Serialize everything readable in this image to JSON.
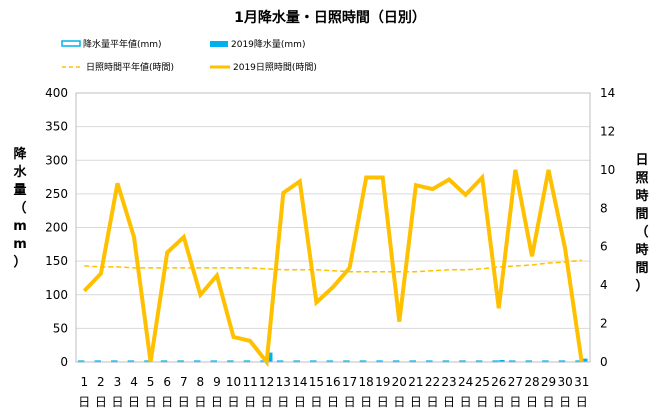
{
  "chart_data": {
    "type": "bar-line-combo",
    "title": "1月降水量・日照時間（日別）",
    "legend": [
      {
        "label": "降水量平年値(mm)",
        "kind": "bar-outline",
        "color": "#00b0f0"
      },
      {
        "label": "2019降水量(mm)",
        "kind": "bar",
        "color": "#00b0f0"
      },
      {
        "label": "日照時間平年値(時間)",
        "kind": "dashed-line",
        "color": "#ffc000"
      },
      {
        "label": "2019日照時間(時間)",
        "kind": "line",
        "color": "#ffc000"
      }
    ],
    "legend_position": "top",
    "categories": [
      "1",
      "2",
      "3",
      "4",
      "5",
      "6",
      "7",
      "8",
      "9",
      "10",
      "11",
      "12",
      "13",
      "14",
      "15",
      "16",
      "17",
      "18",
      "19",
      "20",
      "21",
      "22",
      "23",
      "24",
      "25",
      "26",
      "27",
      "28",
      "29",
      "30",
      "31"
    ],
    "category_suffix": "日",
    "left_axis": {
      "label": "降水量（mm）",
      "min": 0,
      "max": 400,
      "ticks": [
        0,
        50,
        100,
        150,
        200,
        250,
        300,
        350,
        400
      ]
    },
    "right_axis": {
      "label": "日照時間（時間）",
      "min": 0,
      "max": 14,
      "ticks": [
        0,
        2,
        4,
        6,
        8,
        10,
        12,
        14
      ]
    },
    "grid": true,
    "series": [
      {
        "name": "降水量平年値(mm)",
        "axis": "left",
        "type": "bar",
        "values": [
          1.5,
          1.5,
          1.5,
          1.5,
          1.5,
          1.5,
          1.5,
          1.5,
          1.5,
          1.5,
          1.5,
          1.5,
          1.5,
          1.5,
          1.5,
          1.5,
          1.5,
          1.5,
          1.5,
          1.5,
          1.5,
          1.5,
          1.5,
          1.5,
          1.5,
          1.5,
          1.5,
          1.5,
          1.5,
          1.5,
          1.5
        ]
      },
      {
        "name": "2019降水量(mm)",
        "axis": "left",
        "type": "bar",
        "values": [
          0,
          0,
          0,
          0,
          0,
          0,
          0,
          0,
          0,
          0,
          0,
          14,
          0,
          0,
          0,
          0,
          0,
          0,
          0,
          0,
          0,
          0,
          0,
          0,
          0,
          3,
          0,
          0,
          0,
          0,
          5
        ]
      },
      {
        "name": "日照時間平年値(時間)",
        "axis": "right",
        "type": "line",
        "dash": true,
        "values": [
          5.0,
          4.95,
          4.95,
          4.9,
          4.9,
          4.9,
          4.9,
          4.9,
          4.9,
          4.9,
          4.9,
          4.85,
          4.8,
          4.8,
          4.8,
          4.75,
          4.7,
          4.7,
          4.7,
          4.7,
          4.7,
          4.75,
          4.8,
          4.8,
          4.85,
          4.95,
          5.0,
          5.05,
          5.15,
          5.2,
          5.3
        ]
      },
      {
        "name": "2019日照時間(時間)",
        "axis": "right",
        "type": "line",
        "dash": false,
        "values": [
          3.7,
          4.6,
          9.3,
          6.5,
          0.0,
          5.7,
          6.5,
          3.5,
          4.5,
          1.3,
          1.1,
          0.0,
          8.8,
          9.4,
          3.1,
          3.9,
          4.9,
          9.6,
          9.6,
          2.1,
          9.2,
          9.0,
          9.5,
          8.7,
          9.6,
          2.8,
          10.0,
          5.5,
          10.0,
          5.9,
          0.0
        ]
      }
    ]
  }
}
